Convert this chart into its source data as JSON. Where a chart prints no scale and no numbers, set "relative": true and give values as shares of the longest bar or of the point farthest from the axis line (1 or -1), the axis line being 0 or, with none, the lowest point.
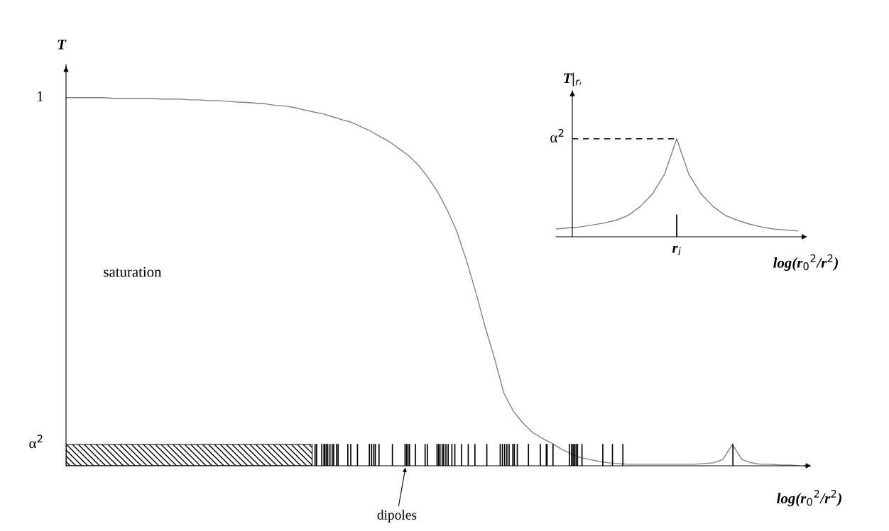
{
  "chart_data": [
    {
      "type": "line",
      "ylabel": "T",
      "xlabel": "log(r$_{0}$$^{2}$/r$^{2}$)",
      "relative": true,
      "categories": [
        null,
        null,
        null,
        null,
        null,
        null,
        null,
        null,
        null,
        null,
        null,
        null,
        null,
        null,
        null,
        null,
        null,
        null,
        null,
        null,
        null,
        null,
        null,
        null,
        null,
        null,
        null,
        null,
        null,
        null,
        null,
        null,
        null,
        null,
        null,
        null,
        null,
        null,
        null,
        null,
        null,
        null,
        null,
        null,
        null,
        null,
        null,
        null,
        null,
        null,
        null,
        null,
        null,
        null,
        null,
        null,
        null,
        null,
        null,
        null,
        null,
        null,
        null,
        null,
        null,
        null,
        null,
        null,
        null,
        null,
        null,
        null,
        null,
        null,
        null,
        null,
        null,
        null
      ],
      "series": [
        {
          "color": "#808080",
          "values": [
            1.0,
            1.0,
            1.0,
            1.0,
            1.0,
            0.998,
            0.998,
            0.998,
            0.998,
            0.998,
            0.996,
            0.996,
            0.996,
            0.994,
            0.994,
            0.992,
            0.992,
            0.99,
            0.988,
            0.987,
            0.985,
            0.983,
            0.979,
            0.977,
            0.973,
            0.967,
            0.961,
            0.956,
            0.948,
            0.94,
            0.933,
            0.921,
            0.909,
            0.894,
            0.88,
            0.861,
            0.842,
            0.817,
            0.784,
            0.746,
            0.697,
            0.64,
            0.563,
            0.476,
            0.38,
            0.293,
            0.197,
            0.148,
            0.116,
            0.091,
            0.075,
            0.062,
            0.046,
            0.033,
            0.023,
            0.017,
            0.012,
            0.008,
            0.006,
            0.004,
            0.004,
            0.004,
            0.004,
            0.004,
            0.004,
            0.004,
            0.004,
            0.006,
            0.008,
            0.017,
            0.058,
            0.017,
            0.008,
            0.004,
            0.004,
            0.002,
            0.002,
            0
          ]
        }
      ],
      "annotations": [
        "1",
        "α$^{2}$",
        "saturation",
        "dipoles"
      ]
    },
    {
      "type": "line",
      "ylabel": "T|$_{rᵢ}$",
      "xlabel": "log(r$_{0}$$^{2}$/r$^{2}$)",
      "relative": true,
      "categories": [
        null,
        null,
        null,
        null,
        null,
        null,
        null,
        null,
        null,
        null,
        null,
        null,
        null,
        null,
        null,
        null,
        null,
        null,
        null,
        null,
        null
      ],
      "series": [
        {
          "color": "#808080",
          "values": [
            0.08,
            0.09,
            0.1,
            0.12,
            0.14,
            0.17,
            0.22,
            0.31,
            0.44,
            0.64,
            1,
            0.64,
            0.44,
            0.31,
            0.22,
            0.17,
            0.13,
            0.1,
            0.08,
            0.07,
            0.06
          ]
        }
      ],
      "ref_lines": [
        {
          "axis": "y",
          "value": 1,
          "label": "α$^{2}$",
          "line_style": "dashed",
          "color": "#000000"
        }
      ],
      "annotations": [
        "r$_{i}$"
      ]
    }
  ]
}
